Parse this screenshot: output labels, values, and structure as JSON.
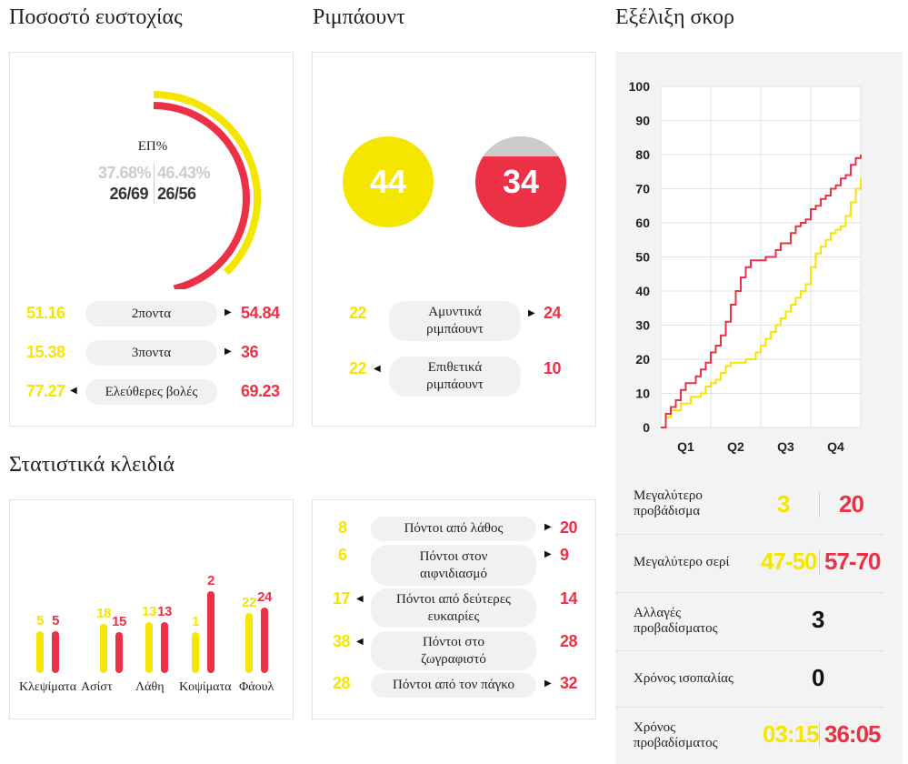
{
  "titles": {
    "shooting": "Ποσοστό ευστοχίας",
    "rebounds": "Ριμπάουντ",
    "score_progress": "Εξέλιξη σκορ",
    "key_stats": "Στατιστικά κλειδιά"
  },
  "colors": {
    "team_a": "#f5e600",
    "team_b": "#ec3146",
    "grey": "#cccccc"
  },
  "shooting": {
    "fg_label": "ΕΠ%",
    "team_a": {
      "pct": "37.68%",
      "made_att": "26/69",
      "pct_value": 37.68
    },
    "team_b": {
      "pct": "46.43%",
      "made_att": "26/56",
      "pct_value": 46.43
    },
    "rows": [
      {
        "label": "2ποντα",
        "a": "51.16",
        "b": "54.84",
        "arrow": "right"
      },
      {
        "label": "3ποντα",
        "a": "15.38",
        "b": "36",
        "arrow": "right"
      },
      {
        "label": "Ελεύθερες βολές",
        "a": "77.27",
        "b": "69.23",
        "arrow": "left"
      }
    ]
  },
  "rebounds": {
    "team_a_total": "44",
    "team_b_total": "34",
    "rows": [
      {
        "label": "Αμυντικά ριμπάουντ",
        "a": "22",
        "b": "24",
        "arrow": "right"
      },
      {
        "label": "Επιθετικά ριμπάουντ",
        "a": "22",
        "b": "10",
        "arrow": "left"
      }
    ]
  },
  "key_stats_bars": [
    {
      "label": "Κλεψίματα",
      "a": 5,
      "b": 5
    },
    {
      "label": "Ασίστ",
      "a": 18,
      "b": 15
    },
    {
      "label": "Λάθη",
      "a": 13,
      "b": 13
    },
    {
      "label": "Κοψίματα",
      "a": 1,
      "b": 2
    },
    {
      "label": "Φάουλ",
      "a": 22,
      "b": 24
    }
  ],
  "points_rows": [
    {
      "label": "Πόντοι από λάθος",
      "a": "8",
      "b": "20",
      "arrow": "right"
    },
    {
      "label": "Πόντοι στον αιφνιδιασμό",
      "a": "6",
      "b": "9",
      "arrow": "right"
    },
    {
      "label": "Πόντοι από δεύτερες ευκαιρίες",
      "a": "17",
      "b": "14",
      "arrow": "left"
    },
    {
      "label": "Πόντοι στο ζωγραφιστό",
      "a": "38",
      "b": "28",
      "arrow": "left"
    },
    {
      "label": "Πόντοι από τον πάγκο",
      "a": "28",
      "b": "32",
      "arrow": "right"
    }
  ],
  "chart_data": {
    "type": "line",
    "title": "Εξέλιξη σκορ",
    "y_ticks": [
      "0",
      "10",
      "20",
      "30",
      "40",
      "50",
      "60",
      "70",
      "80",
      "90",
      "100"
    ],
    "x_labels": [
      "Q1",
      "Q2",
      "Q3",
      "Q4"
    ],
    "ylim": [
      0,
      100
    ],
    "xlim": [
      0,
      40
    ],
    "grid": true,
    "series": [
      {
        "color": "#f5e600",
        "x": [
          0,
          1,
          2,
          3,
          4,
          5,
          6,
          7,
          8,
          9,
          10,
          11,
          12,
          13,
          14,
          15,
          16,
          17,
          18,
          19,
          20,
          21,
          22,
          23,
          24,
          25,
          26,
          27,
          28,
          29,
          30,
          31,
          32,
          33,
          34,
          35,
          36,
          37,
          38,
          39,
          40
        ],
        "y": [
          0,
          3,
          5,
          5,
          7,
          7,
          9,
          9,
          10,
          12,
          13,
          14,
          16,
          18,
          19,
          19,
          19,
          20,
          20,
          22,
          24,
          26,
          28,
          30,
          32,
          34,
          36,
          38,
          40,
          42,
          47,
          51,
          53,
          55,
          57,
          58,
          59,
          62,
          66,
          70,
          73
        ]
      },
      {
        "color": "#ec3146",
        "x": [
          0,
          1,
          2,
          3,
          4,
          5,
          6,
          7,
          8,
          9,
          10,
          11,
          12,
          13,
          14,
          15,
          16,
          17,
          18,
          19,
          20,
          21,
          22,
          23,
          24,
          25,
          26,
          27,
          28,
          29,
          30,
          31,
          32,
          33,
          34,
          35,
          36,
          37,
          38,
          39,
          40
        ],
        "y": [
          0,
          4,
          6,
          8,
          11,
          13,
          13,
          15,
          17,
          19,
          22,
          24,
          27,
          31,
          36,
          40,
          44,
          47,
          49,
          49,
          49,
          50,
          50,
          52,
          54,
          54,
          57,
          59,
          60,
          61,
          64,
          65,
          67,
          68,
          70,
          71,
          73,
          74,
          77,
          79,
          80
        ]
      }
    ]
  },
  "score_stats": [
    {
      "label": "Μεγαλύτερο προβάδισμα",
      "a": "3",
      "b": "20"
    },
    {
      "label": "Μεγαλύτερο σερί",
      "a": "47-50",
      "b": "57-70"
    },
    {
      "label": "Αλλαγές προβαδίσματος",
      "value": "3"
    },
    {
      "label": "Χρόνος ισοπαλίας",
      "value": "0"
    },
    {
      "label": "Χρόνος προβαδίσματος",
      "a": "03:15",
      "b": "36:05"
    }
  ]
}
